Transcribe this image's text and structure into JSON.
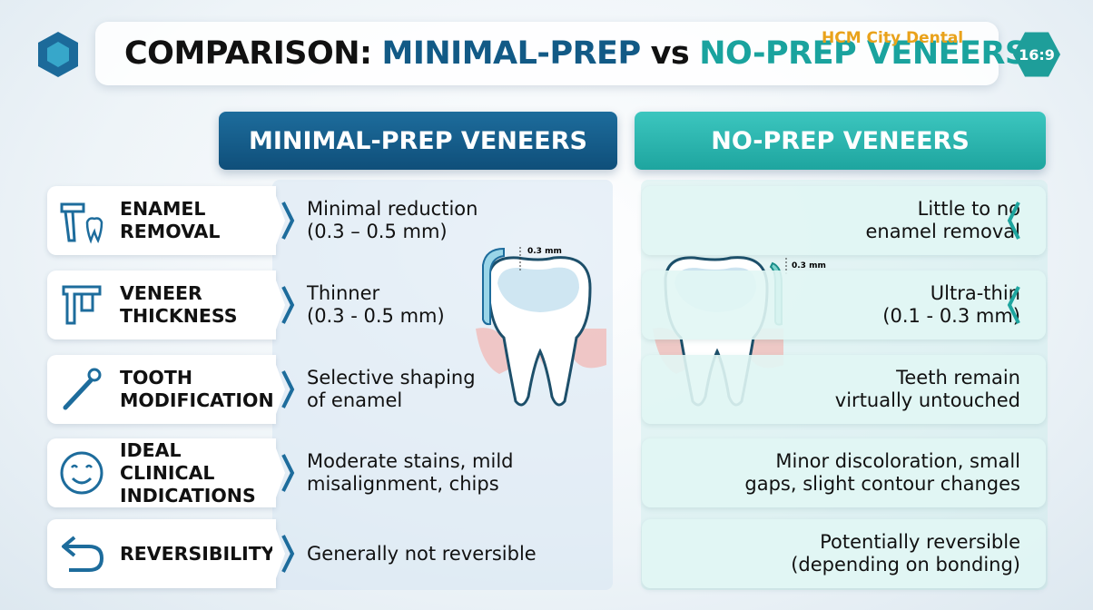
{
  "header": {
    "title": [
      "COMPARISON:",
      "MINIMAL-PREP",
      "vs",
      "NO-PREP VENEERS"
    ],
    "logo": "HCM City Dental",
    "badge": "16:9"
  },
  "columns": [
    "MINIMAL-PREP VENEERS",
    "NO-PREP VENEERS"
  ],
  "rows": [
    {
      "label": "ENAMEL\nREMOVAL",
      "minimal_prep": "Minimal reduction\n(0.3 – 0.5 mm)",
      "no_prep": "Little to no\nenamel removal"
    },
    {
      "label": "VENEER\nTHICKNESS",
      "minimal_prep": "Thinner\n(0.3 - 0.5 mm)",
      "no_prep": "Ultra-thin\n(0.1 - 0.3 mm)"
    },
    {
      "label": "TOOTH\nMODIFICATION",
      "minimal_prep": "Selective shaping\nof enamel",
      "no_prep": "Teeth remain\nvirtually untouched"
    },
    {
      "label": "IDEAL CLINICAL\nINDICATIONS",
      "minimal_prep": "Moderate stains, mild\nmisalignment, chips",
      "no_prep": "Minor discoloration, small\ngaps, slight contour changes"
    },
    {
      "label": "REVERSIBILITY",
      "minimal_prep": "Generally not reversible",
      "no_prep": "Potentially reversible\n(depending on bonding)"
    }
  ],
  "illustrations": [
    {
      "annotation": "0.3 mm"
    },
    {
      "annotation": "0.3 mm"
    }
  ]
}
